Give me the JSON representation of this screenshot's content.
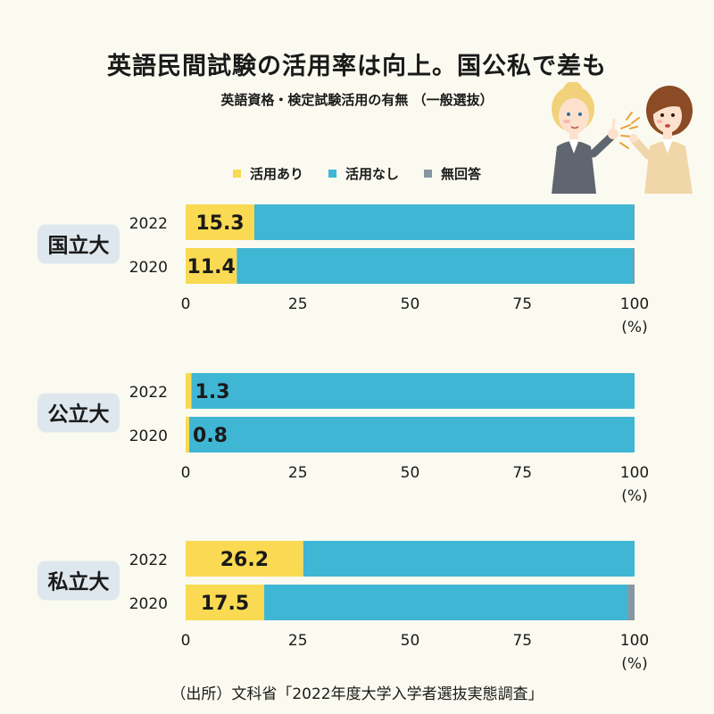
{
  "title": "英語民間試験の活用率は向上。国公私で差も",
  "subtitle": "英語資格・検定試験活用の有無 （一般選抜）",
  "footer": "（出所）文科省「2022年度大学入学者選抜実態調査」",
  "colors": {
    "yes": "#f9da52",
    "no": "#3fb6d4",
    "none": "#8696a3",
    "group_bg": "#dfe7ee",
    "background": "#fbfaf0"
  },
  "chart_data": {
    "type": "bar",
    "orientation": "horizontal",
    "stacked": true,
    "unit_label": "(%)",
    "xlim": [
      0,
      100
    ],
    "x_ticks": [
      "0",
      "25",
      "50",
      "75",
      "100"
    ],
    "legend": [
      "活用あり",
      "活用なし",
      "無回答"
    ],
    "legend_position": "top",
    "groups": [
      {
        "name": "国立大",
        "rows": [
          {
            "year": "2022",
            "yes": 15.3,
            "no": 84.6,
            "none": 0.1,
            "label": "15.3"
          },
          {
            "year": "2020",
            "yes": 11.4,
            "no": 88.2,
            "none": 0.4,
            "label": "11.4"
          }
        ]
      },
      {
        "name": "公立大",
        "rows": [
          {
            "year": "2022",
            "yes": 1.3,
            "no": 98.7,
            "none": 0,
            "label": "1.3"
          },
          {
            "year": "2020",
            "yes": 0.8,
            "no": 99.2,
            "none": 0,
            "label": "0.8"
          }
        ]
      },
      {
        "name": "私立大",
        "rows": [
          {
            "year": "2022",
            "yes": 26.2,
            "no": 73.8,
            "none": 0,
            "label": "26.2"
          },
          {
            "year": "2020",
            "yes": 17.5,
            "no": 81.0,
            "none": 1.5,
            "label": "17.5"
          }
        ]
      }
    ]
  }
}
